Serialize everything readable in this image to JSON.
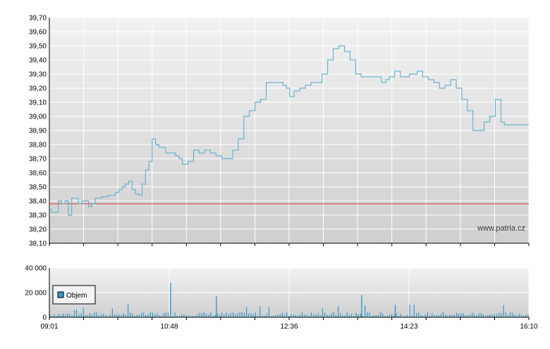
{
  "watermark": "www.patria.cz",
  "colors": {
    "price_line": "#55aacc",
    "reference_line": "#dd3333",
    "volume_bar": "#3399cc",
    "grid": "#ffffff",
    "panel_top": "#f2f2f2",
    "panel_bottom": "#cfcfcf"
  },
  "chart_data": [
    {
      "type": "line",
      "title": "",
      "x_range": [
        "09:01",
        "16:10"
      ],
      "y_ticks": [
        "39,70",
        "39,60",
        "39,50",
        "39,40",
        "39,30",
        "39,20",
        "39,10",
        "39,00",
        "38,90",
        "38,80",
        "38,70",
        "38,60",
        "38,50",
        "38,40",
        "38,30",
        "38,20",
        "38,10"
      ],
      "ylim": [
        38.1,
        39.7
      ],
      "reference_level": 38.38,
      "grid": true,
      "series": [
        {
          "x": [
            "09:01",
            "09:03",
            "09:06",
            "09:09",
            "09:12",
            "09:15",
            "09:18",
            "09:21",
            "09:24",
            "09:27",
            "09:30",
            "09:33",
            "09:36",
            "09:39",
            "09:42",
            "09:45",
            "09:48",
            "09:51",
            "09:54",
            "09:57",
            "10:00",
            "10:03",
            "10:06",
            "10:09",
            "10:12",
            "10:15",
            "10:18",
            "10:21",
            "10:24",
            "10:27",
            "10:30",
            "10:33",
            "10:36",
            "10:39",
            "10:42",
            "10:45",
            "10:48",
            "10:51",
            "10:54",
            "10:57",
            "11:00",
            "11:05",
            "11:10",
            "11:15",
            "11:20",
            "11:25",
            "11:30",
            "11:35",
            "11:40",
            "11:45",
            "11:50",
            "11:55",
            "12:00",
            "12:05",
            "12:10",
            "12:15",
            "12:20",
            "12:25",
            "12:30",
            "12:33",
            "12:36",
            "12:40",
            "12:45",
            "12:50",
            "12:55",
            "13:00",
            "13:05",
            "13:10",
            "13:15",
            "13:20",
            "13:25",
            "13:30",
            "13:35",
            "13:40",
            "13:45",
            "13:50",
            "13:55",
            "13:58",
            "14:00",
            "14:02",
            "14:05",
            "14:10",
            "14:15",
            "14:20",
            "14:23",
            "14:30",
            "14:35",
            "14:40",
            "14:45",
            "14:50",
            "14:55",
            "15:00",
            "15:05",
            "15:10",
            "15:15",
            "15:20",
            "15:25",
            "15:30",
            "15:35",
            "15:40",
            "15:45",
            "15:48",
            "15:50",
            "15:55",
            "16:00",
            "16:05",
            "16:10"
          ],
          "y": [
            38.34,
            38.32,
            38.32,
            38.4,
            38.38,
            38.4,
            38.3,
            38.42,
            38.42,
            38.38,
            38.4,
            38.4,
            38.36,
            38.38,
            38.42,
            38.42,
            38.43,
            38.43,
            38.44,
            38.44,
            38.46,
            38.48,
            38.5,
            38.52,
            38.54,
            38.48,
            38.45,
            38.44,
            38.52,
            38.62,
            38.68,
            38.84,
            38.8,
            38.78,
            38.78,
            38.74,
            38.74,
            38.74,
            38.72,
            38.7,
            38.66,
            38.68,
            38.76,
            38.74,
            38.76,
            38.74,
            38.72,
            38.7,
            38.7,
            38.76,
            38.84,
            39.0,
            39.04,
            39.1,
            39.12,
            39.24,
            39.24,
            39.24,
            39.22,
            39.2,
            39.14,
            39.18,
            39.2,
            39.22,
            39.24,
            39.24,
            39.3,
            39.4,
            39.48,
            39.5,
            39.46,
            39.4,
            39.3,
            39.28,
            39.28,
            39.28,
            39.28,
            39.24,
            39.24,
            39.26,
            39.28,
            39.32,
            39.28,
            39.28,
            39.3,
            39.32,
            39.28,
            39.26,
            39.24,
            39.2,
            39.22,
            39.26,
            39.2,
            39.12,
            39.04,
            38.9,
            38.9,
            38.96,
            39.0,
            39.12,
            38.96,
            38.94,
            38.94,
            38.94,
            38.94,
            38.94,
            38.94
          ]
        }
      ]
    },
    {
      "type": "bar",
      "title": "",
      "legend": [
        "Objem"
      ],
      "legend_position": "top-left",
      "x_ticks": [
        "09:01",
        "10:48",
        "12:36",
        "14:23",
        "16:10"
      ],
      "y_ticks": [
        "40 000",
        "20 000",
        "0"
      ],
      "ylim": [
        0,
        40000
      ],
      "grid": true,
      "peak_volumes": [
        {
          "time": "10:49",
          "value": 28000
        },
        {
          "time": "11:30",
          "value": 17000
        },
        {
          "time": "13:40",
          "value": 18000
        },
        {
          "time": "14:10",
          "value": 10000
        }
      ],
      "typical_volume": 2500
    }
  ]
}
